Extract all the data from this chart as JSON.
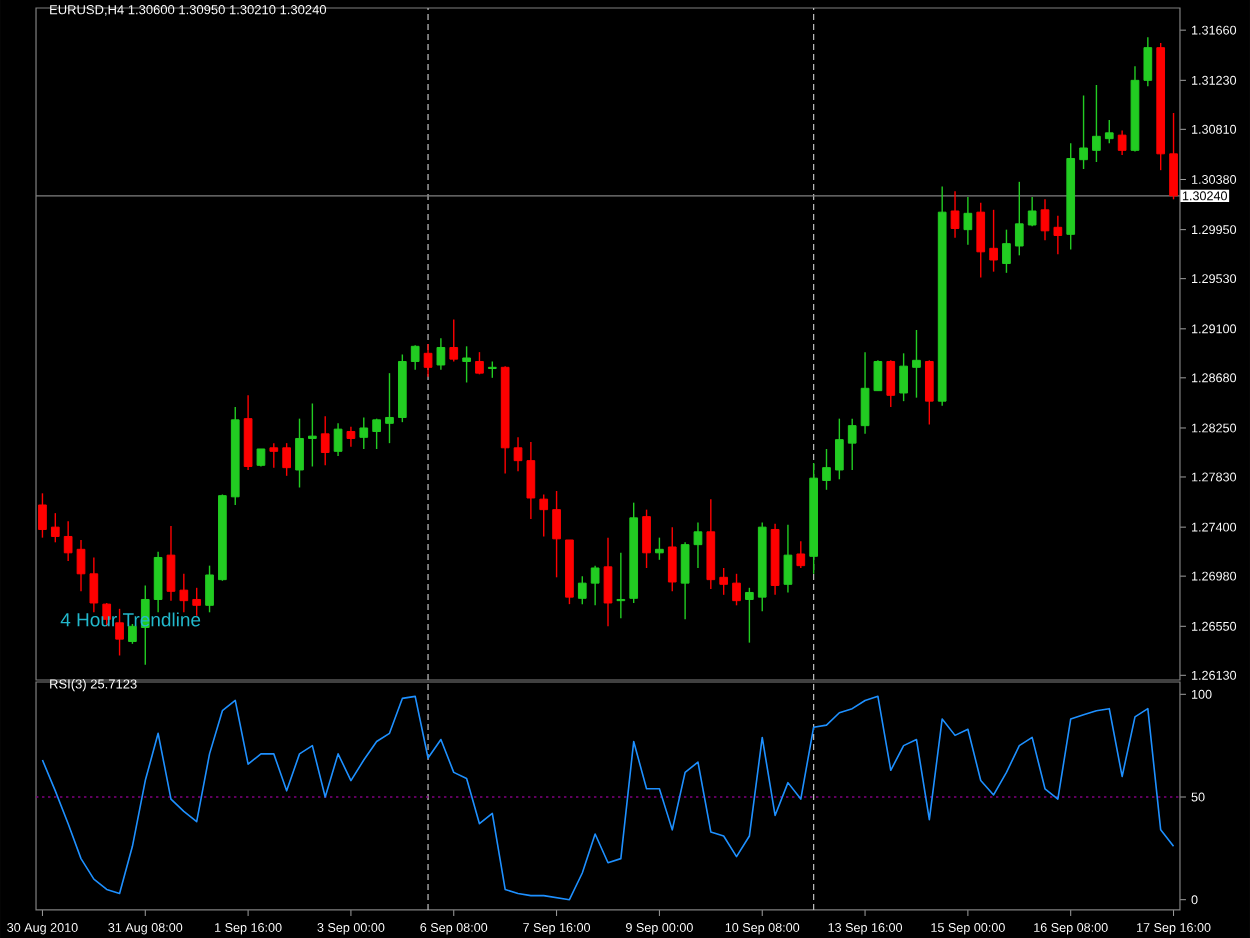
{
  "chart_data": [
    {
      "type": "candlestick",
      "title": "EURUSD,H4  1.30600 1.30950 1.30210 1.30240",
      "categories": [
        null,
        null,
        null,
        null,
        null,
        null,
        null,
        null,
        null,
        null,
        null,
        null,
        null,
        null,
        null,
        null,
        null,
        null,
        null,
        null,
        null,
        null,
        null,
        null,
        null,
        null,
        null,
        null,
        null,
        null,
        null,
        null,
        null,
        null,
        null,
        null,
        null,
        null,
        null,
        null,
        null,
        null,
        null,
        null,
        null,
        null,
        null,
        null,
        null,
        null,
        null,
        null,
        null,
        null,
        null,
        null,
        null,
        null,
        null,
        null,
        null,
        null,
        null,
        null,
        null,
        null,
        null,
        null,
        null,
        null,
        null,
        null,
        null,
        null,
        null,
        null,
        null,
        null,
        null,
        null,
        null,
        null,
        null,
        null,
        null,
        null,
        null,
        null,
        null
      ],
      "ohlc": [
        [
          1.2759,
          1.2769,
          1.2731,
          1.2738
        ],
        [
          1.274,
          1.2752,
          1.2727,
          1.2732
        ],
        [
          1.2732,
          1.2745,
          1.2711,
          1.2718
        ],
        [
          1.2721,
          1.2729,
          1.2685,
          1.27
        ],
        [
          1.27,
          1.2714,
          1.2667,
          1.2675
        ],
        [
          1.2674,
          1.2675,
          1.2655,
          1.2661
        ],
        [
          1.2658,
          1.267,
          1.263,
          1.2644
        ],
        [
          1.2642,
          1.2657,
          1.264,
          1.2655
        ],
        [
          1.2654,
          1.269,
          1.2622,
          1.2678
        ],
        [
          1.2678,
          1.2719,
          1.2667,
          1.2714
        ],
        [
          1.2716,
          1.2741,
          1.2677,
          1.2685
        ],
        [
          1.2686,
          1.27,
          1.2667,
          1.2677
        ],
        [
          1.2678,
          1.2688,
          1.2664,
          1.2673
        ],
        [
          1.2673,
          1.2707,
          1.2667,
          1.2699
        ],
        [
          1.2695,
          1.2768,
          1.2694,
          1.2767
        ],
        [
          1.2766,
          1.2843,
          1.2759,
          1.2832
        ],
        [
          1.2833,
          1.2853,
          1.2789,
          1.2792
        ],
        [
          1.2793,
          1.2807,
          1.2792,
          1.2807
        ],
        [
          1.2808,
          1.2812,
          1.2791,
          1.2805
        ],
        [
          1.2808,
          1.2812,
          1.2784,
          1.2791
        ],
        [
          1.2789,
          1.2833,
          1.2774,
          1.2816
        ],
        [
          1.2816,
          1.2846,
          1.2792,
          1.2818
        ],
        [
          1.282,
          1.2835,
          1.2793,
          1.2804
        ],
        [
          1.2805,
          1.2829,
          1.2801,
          1.2824
        ],
        [
          1.2822,
          1.2826,
          1.2809,
          1.2816
        ],
        [
          1.2817,
          1.2834,
          1.2807,
          1.2825
        ],
        [
          1.2822,
          1.2833,
          1.2807,
          1.2832
        ],
        [
          1.2829,
          1.2872,
          1.2812,
          1.2834
        ],
        [
          1.2834,
          1.2888,
          1.283,
          1.2882
        ],
        [
          1.2882,
          1.2896,
          1.2875,
          1.2895
        ],
        [
          1.2889,
          1.2897,
          1.2869,
          1.2877
        ],
        [
          1.2879,
          1.2902,
          1.2875,
          1.2894
        ],
        [
          1.2894,
          1.2918,
          1.2882,
          1.2884
        ],
        [
          1.2882,
          1.2895,
          1.2864,
          1.2885
        ],
        [
          1.2882,
          1.289,
          1.2871,
          1.2872
        ],
        [
          1.2876,
          1.2882,
          1.2868,
          1.2877
        ],
        [
          1.2877,
          1.2878,
          1.2786,
          1.2808
        ],
        [
          1.2808,
          1.2817,
          1.2788,
          1.2797
        ],
        [
          1.2797,
          1.2813,
          1.2747,
          1.2765
        ],
        [
          1.2764,
          1.2768,
          1.2732,
          1.2755
        ],
        [
          1.2755,
          1.2771,
          1.2697,
          1.273
        ],
        [
          1.2729,
          1.2729,
          1.2674,
          1.268
        ],
        [
          1.2679,
          1.2698,
          1.2674,
          1.2692
        ],
        [
          1.2692,
          1.2707,
          1.2673,
          1.2705
        ],
        [
          1.2706,
          1.2731,
          1.2655,
          1.2675
        ],
        [
          1.2677,
          1.2718,
          1.2662,
          1.2678
        ],
        [
          1.2679,
          1.2761,
          1.2675,
          1.2748
        ],
        [
          1.2749,
          1.2755,
          1.2705,
          1.2718
        ],
        [
          1.2718,
          1.2731,
          1.2712,
          1.2721
        ],
        [
          1.2723,
          1.274,
          1.2685,
          1.2693
        ],
        [
          1.2692,
          1.2727,
          1.2661,
          1.2725
        ],
        [
          1.2725,
          1.2744,
          1.2705,
          1.2736
        ],
        [
          1.2736,
          1.2764,
          1.2687,
          1.2695
        ],
        [
          1.2697,
          1.2705,
          1.2682,
          1.2691
        ],
        [
          1.2692,
          1.27,
          1.2673,
          1.2677
        ],
        [
          1.2678,
          1.2688,
          1.2641,
          1.2684
        ],
        [
          1.268,
          1.2744,
          1.2668,
          1.274
        ],
        [
          1.2738,
          1.2743,
          1.2682,
          1.269
        ],
        [
          1.2691,
          1.2742,
          1.2684,
          1.2716
        ],
        [
          1.2717,
          1.2728,
          1.2705,
          1.2707
        ],
        [
          1.2715,
          1.2795,
          1.27,
          1.2782
        ],
        [
          1.278,
          1.2807,
          1.2772,
          1.2791
        ],
        [
          1.2789,
          1.2833,
          1.2781,
          1.2815
        ],
        [
          1.2812,
          1.2833,
          1.2789,
          1.2827
        ],
        [
          1.2827,
          1.289,
          1.282,
          1.2859
        ],
        [
          1.2857,
          1.2883,
          1.2857,
          1.2882
        ],
        [
          1.2882,
          1.2883,
          1.2843,
          1.2853
        ],
        [
          1.2855,
          1.2889,
          1.2848,
          1.2878
        ],
        [
          1.2877,
          1.2909,
          1.2851,
          1.2883
        ],
        [
          1.2882,
          1.2883,
          1.2828,
          1.2848
        ],
        [
          1.2848,
          1.3032,
          1.2844,
          1.301
        ],
        [
          1.3011,
          1.3028,
          1.2988,
          1.2996
        ],
        [
          1.2995,
          1.3023,
          1.2982,
          1.3009
        ],
        [
          1.301,
          1.3018,
          1.2954,
          1.2976
        ],
        [
          1.2979,
          1.3012,
          1.2959,
          1.2969
        ],
        [
          1.2966,
          1.2995,
          1.2958,
          1.2983
        ],
        [
          1.2981,
          1.3036,
          1.2973,
          1.3
        ],
        [
          1.2999,
          1.3023,
          1.2998,
          1.3011
        ],
        [
          1.3012,
          1.3021,
          1.2986,
          1.2994
        ],
        [
          1.2997,
          1.3007,
          1.2974,
          1.299
        ],
        [
          1.2991,
          1.3069,
          1.2978,
          1.3056
        ],
        [
          1.3055,
          1.311,
          1.3047,
          1.3065
        ],
        [
          1.3063,
          1.3119,
          1.3053,
          1.3075
        ],
        [
          1.3073,
          1.3089,
          1.3069,
          1.3078
        ],
        [
          1.3076,
          1.308,
          1.3059,
          1.3063
        ],
        [
          1.3063,
          1.3135,
          1.3062,
          1.3123
        ],
        [
          1.3123,
          1.316,
          1.3118,
          1.3151
        ],
        [
          1.3151,
          1.3155,
          1.3046,
          1.306
        ],
        [
          1.306,
          1.3095,
          1.3021,
          1.3024
        ]
      ],
      "colors": [
        "#ff0000",
        "#ff0000",
        "#ff0000",
        "#ff0000",
        "#ff0000",
        "#ff0000",
        "#ff0000",
        "#22cc22",
        "#22cc22",
        "#22cc22",
        "#ff0000",
        "#ff0000",
        "#ff0000",
        "#22cc22",
        "#22cc22",
        "#22cc22",
        "#ff0000",
        "#22cc22",
        "#ff0000",
        "#ff0000",
        "#22cc22",
        "#22cc22",
        "#ff0000",
        "#22cc22",
        "#ff0000",
        "#22cc22",
        "#22cc22",
        "#22cc22",
        "#22cc22",
        "#22cc22",
        "#ff0000",
        "#22cc22",
        "#ff0000",
        "#22cc22",
        "#ff0000",
        "#22cc22",
        "#ff0000",
        "#ff0000",
        "#ff0000",
        "#ff0000",
        "#ff0000",
        "#ff0000",
        "#22cc22",
        "#22cc22",
        "#ff0000",
        "#22cc22",
        "#22cc22",
        "#ff0000",
        "#22cc22",
        "#ff0000",
        "#22cc22",
        "#22cc22",
        "#ff0000",
        "#ff0000",
        "#ff0000",
        "#22cc22",
        "#22cc22",
        "#ff0000",
        "#22cc22",
        "#ff0000",
        "#22cc22",
        "#22cc22",
        "#22cc22",
        "#22cc22",
        "#22cc22",
        "#22cc22",
        "#ff0000",
        "#22cc22",
        "#22cc22",
        "#ff0000",
        "#22cc22",
        "#ff0000",
        "#22cc22",
        "#ff0000",
        "#ff0000",
        "#22cc22",
        "#22cc22",
        "#22cc22",
        "#ff0000",
        "#ff0000",
        "#22cc22",
        "#22cc22",
        "#22cc22",
        "#22cc22",
        "#ff0000",
        "#22cc22",
        "#22cc22",
        "#ff0000",
        "#ff0000"
      ],
      "ylim": [
        1.2609,
        1.3185
      ],
      "yticks": [
        {
          "value": 1.3166,
          "label": "1.31660"
        },
        {
          "value": 1.3123,
          "label": "1.31230"
        },
        {
          "value": 1.3081,
          "label": "1.30810"
        },
        {
          "value": 1.3038,
          "label": "1.30380"
        },
        {
          "value": 1.2995,
          "label": "1.29950"
        },
        {
          "value": 1.2953,
          "label": "1.29530"
        },
        {
          "value": 1.291,
          "label": "1.29100"
        },
        {
          "value": 1.2868,
          "label": "1.28680"
        },
        {
          "value": 1.2825,
          "label": "1.28250"
        },
        {
          "value": 1.2783,
          "label": "1.27830"
        },
        {
          "value": 1.274,
          "label": "1.27400"
        },
        {
          "value": 1.2698,
          "label": "1.26980"
        },
        {
          "value": 1.2655,
          "label": "1.26550"
        },
        {
          "value": 1.2613,
          "label": "1.26130"
        }
      ],
      "tick_labels": "y",
      "ref_lines": [
        {
          "axis": "y",
          "value": 1.3024,
          "label": "1.30240",
          "color": "#808080"
        }
      ],
      "annotations": [
        "4 Hour Trendline"
      ]
    },
    {
      "type": "line",
      "title": "RSI(3) 25.7123",
      "categories": [
        "30 Aug 2010",
        null,
        null,
        null,
        null,
        null,
        null,
        null,
        "31 Aug 08:00",
        null,
        null,
        null,
        null,
        null,
        null,
        null,
        "1 Sep 16:00",
        null,
        null,
        null,
        null,
        null,
        null,
        null,
        "3 Sep 00:00",
        null,
        null,
        null,
        null,
        null,
        null,
        null,
        "6 Sep 08:00",
        null,
        null,
        null,
        null,
        null,
        null,
        null,
        "7 Sep 16:00",
        null,
        null,
        null,
        null,
        null,
        null,
        null,
        "9 Sep 00:00",
        null,
        null,
        null,
        null,
        null,
        null,
        null,
        "10 Sep 08:00",
        null,
        null,
        null,
        null,
        null,
        null,
        null,
        "13 Sep 16:00",
        null,
        null,
        null,
        null,
        null,
        null,
        null,
        "15 Sep 00:00",
        null,
        null,
        null,
        null,
        null,
        null,
        null,
        "16 Sep 08:00",
        null,
        null,
        null,
        null,
        null,
        null,
        null,
        "17 Sep 16:00"
      ],
      "values": [
        68,
        53,
        37,
        20,
        10,
        5,
        3,
        26,
        58,
        81,
        49,
        43,
        38,
        71,
        92,
        97,
        66,
        71,
        71,
        53,
        71,
        75,
        50,
        71,
        58,
        68,
        77,
        81,
        98,
        99,
        69,
        78,
        62,
        59,
        37,
        42,
        5,
        3,
        2,
        2,
        1,
        0,
        13,
        32,
        18,
        20,
        77,
        54,
        54,
        34,
        62,
        67,
        33,
        31,
        21,
        31,
        79,
        41,
        57,
        49,
        84,
        85,
        91,
        93,
        97,
        99,
        63,
        75,
        78,
        39,
        88,
        80,
        83,
        58,
        51,
        62,
        75,
        79,
        54,
        49,
        88,
        90,
        92,
        93,
        60,
        89,
        93,
        34,
        26
      ],
      "color": "#1e90ff",
      "ylim": [
        -5,
        106
      ],
      "yticks": [
        0,
        50,
        100
      ],
      "line_style": "solid",
      "ref_lines": [
        {
          "axis": "y",
          "value": 50,
          "color": "#800080",
          "line_style": "dotted"
        }
      ]
    }
  ]
}
